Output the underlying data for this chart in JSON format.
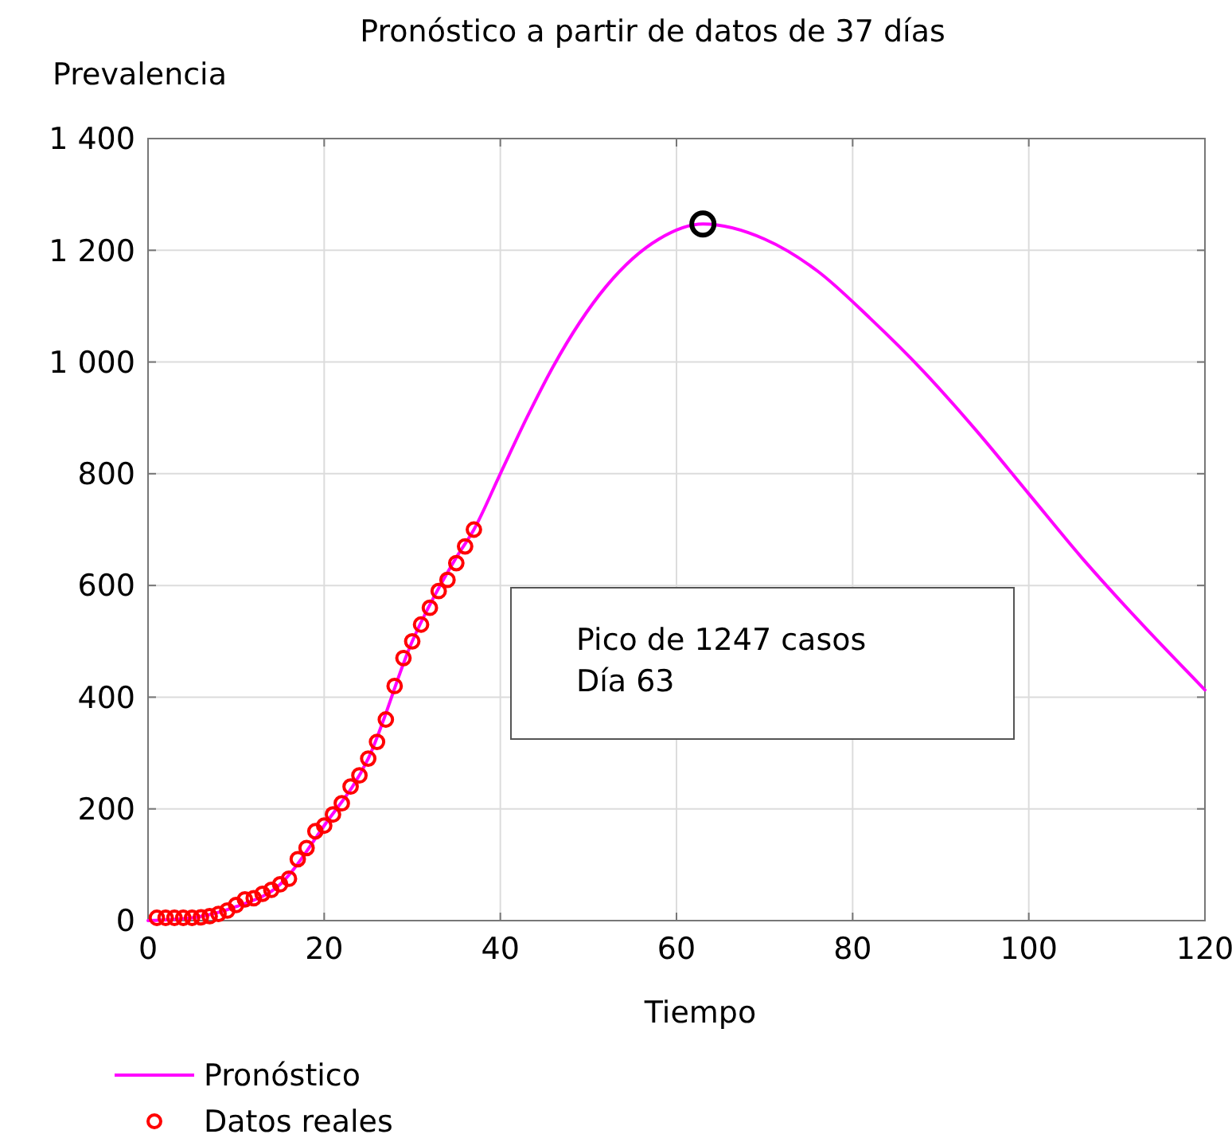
{
  "chart_data": {
    "type": "line",
    "title": "Pronóstico a partir de datos de 37 días",
    "xlabel": "Tiempo",
    "ylabel": "Prevalencia",
    "xlim": [
      0,
      120
    ],
    "xticks": [
      0,
      20,
      40,
      60,
      80,
      100,
      120
    ],
    "ylim": [
      0,
      1400
    ],
    "yticks": [
      0,
      200,
      400,
      600,
      800,
      {
        "value": 1000,
        "label": "1 000"
      },
      {
        "value": 1200,
        "label": "1 200"
      },
      {
        "value": 1400,
        "label": "1 400"
      }
    ],
    "grid": true,
    "legend": "bottom left",
    "line_style": "solid",
    "annotations": [
      "Pico de 1247 casos\nDía 63"
    ],
    "series": [
      {
        "name": "Pronóstico",
        "color": "#ff00ff",
        "marker": "none",
        "x": [
          0,
          5,
          10,
          15,
          20,
          25,
          30,
          35,
          37,
          40,
          43,
          46,
          52,
          58,
          63,
          70,
          76,
          82,
          88,
          94,
          100,
          106,
          112,
          120
        ],
        "values": [
          0,
          5,
          25,
          65,
          170,
          290,
          500,
          650,
          700,
          800,
          900,
          992,
          1135,
          1220,
          1247,
          1220,
          1163,
          1078,
          984,
          878,
          764,
          650,
          545,
          413
        ]
      },
      {
        "name": "Datos reales",
        "type": "scatter",
        "color": "#ff0000",
        "marker": "circle",
        "x": [
          1,
          2,
          3,
          4,
          5,
          6,
          7,
          8,
          9,
          10,
          11,
          12,
          13,
          14,
          15,
          16,
          17,
          18,
          19,
          20,
          21,
          22,
          23,
          24,
          25,
          26,
          27,
          28,
          29,
          30,
          31,
          32,
          33,
          34,
          35,
          36,
          37
        ],
        "values": [
          5,
          5,
          5,
          5,
          5,
          6,
          8,
          12,
          18,
          28,
          38,
          40,
          48,
          55,
          65,
          75,
          110,
          130,
          160,
          170,
          190,
          210,
          240,
          260,
          290,
          320,
          360,
          420,
          470,
          500,
          530,
          560,
          590,
          610,
          640,
          670,
          700
        ]
      },
      {
        "type": "scatter",
        "color": "#000000",
        "marker": "circle",
        "x": [
          63
        ],
        "values": [
          1247
        ]
      }
    ]
  }
}
